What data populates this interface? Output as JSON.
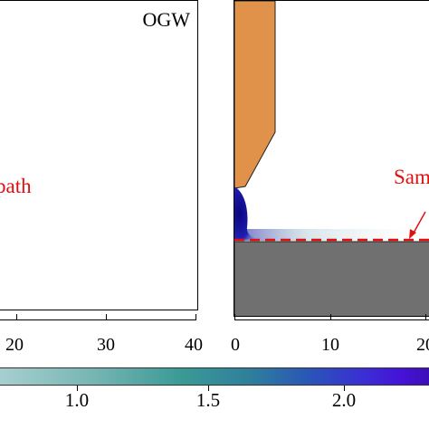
{
  "left_panel": {
    "title": "OGW",
    "path_label": "path",
    "x_ticks": [
      "20",
      "30",
      "40"
    ]
  },
  "right_panel": {
    "sample_label": "Sam",
    "x_ticks": [
      "0",
      "10",
      "20"
    ],
    "colors": {
      "nozzle": "#e0914a",
      "substrate": "#707070",
      "sample_line": "#e01010",
      "concentration": "#1a0a9c"
    }
  },
  "colorbar": {
    "ticks": [
      "1.0",
      "1.5",
      "2.0"
    ]
  }
}
